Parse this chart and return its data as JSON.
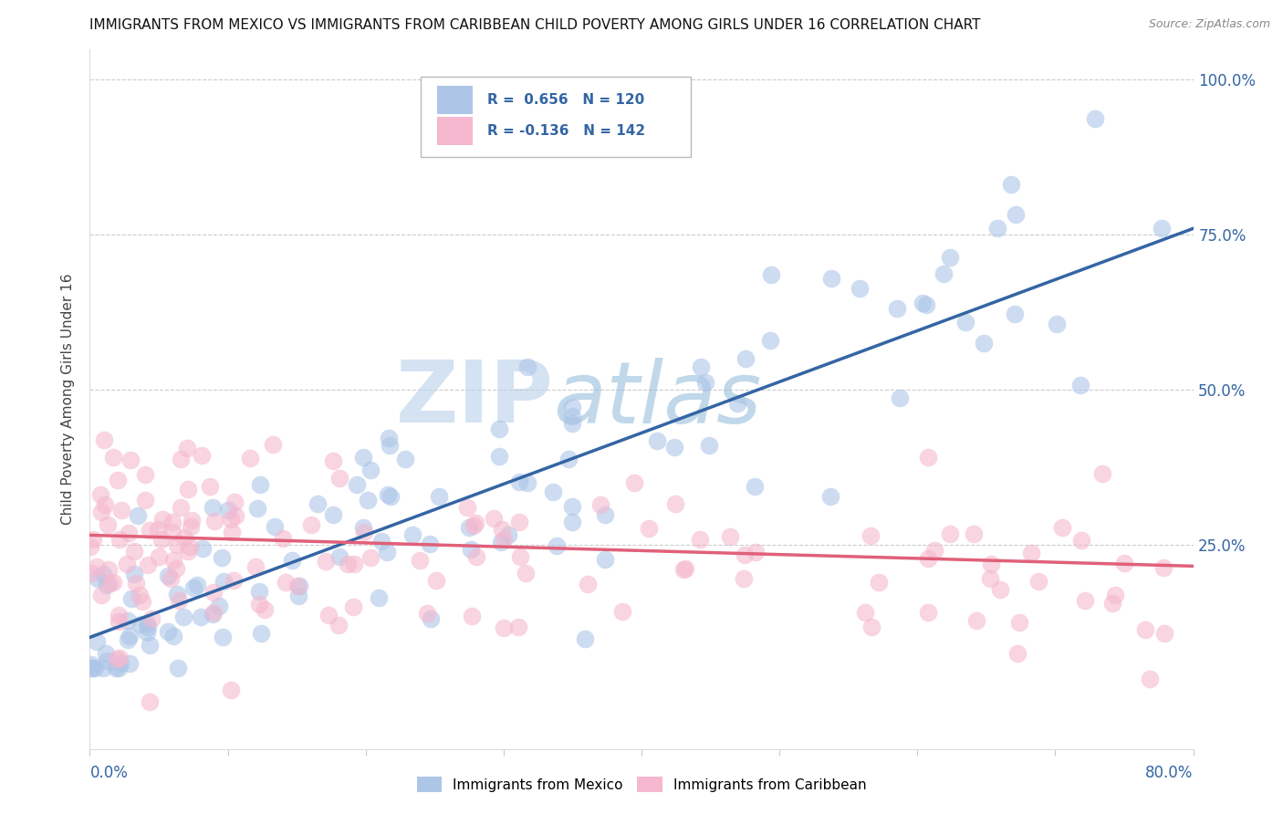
{
  "title": "IMMIGRANTS FROM MEXICO VS IMMIGRANTS FROM CARIBBEAN CHILD POVERTY AMONG GIRLS UNDER 16 CORRELATION CHART",
  "source": "Source: ZipAtlas.com",
  "ylabel": "Child Poverty Among Girls Under 16",
  "mexico_R": "0.656",
  "mexico_N": "120",
  "caribbean_R": "-0.136",
  "caribbean_N": "142",
  "mexico_color": "#adc6e8",
  "mexico_line_color": "#3465a4",
  "caribbean_color": "#f5b8ce",
  "caribbean_line_color": "#e0607a",
  "background_color": "#ffffff",
  "watermark_color": "#d0dff0",
  "watermark_part1": "ZIP",
  "watermark_part2": "atlas",
  "xlim": [
    0.0,
    0.8
  ],
  "ylim": [
    -0.08,
    1.05
  ],
  "ytick_values": [
    0.25,
    0.5,
    0.75,
    1.0
  ],
  "ytick_labels": [
    "25.0%",
    "50.0%",
    "75.0%",
    "100.0%"
  ],
  "xtick_values": [
    0.0,
    0.1,
    0.2,
    0.3,
    0.4,
    0.5,
    0.6,
    0.7,
    0.8
  ],
  "mexico_line_start_x": 0.0,
  "mexico_line_start_y": 0.1,
  "mexico_line_end_x": 0.8,
  "mexico_line_end_y": 0.76,
  "caribbean_line_start_x": 0.0,
  "caribbean_line_start_y": 0.265,
  "caribbean_line_end_x": 0.8,
  "caribbean_line_end_y": 0.215,
  "seed": 99
}
